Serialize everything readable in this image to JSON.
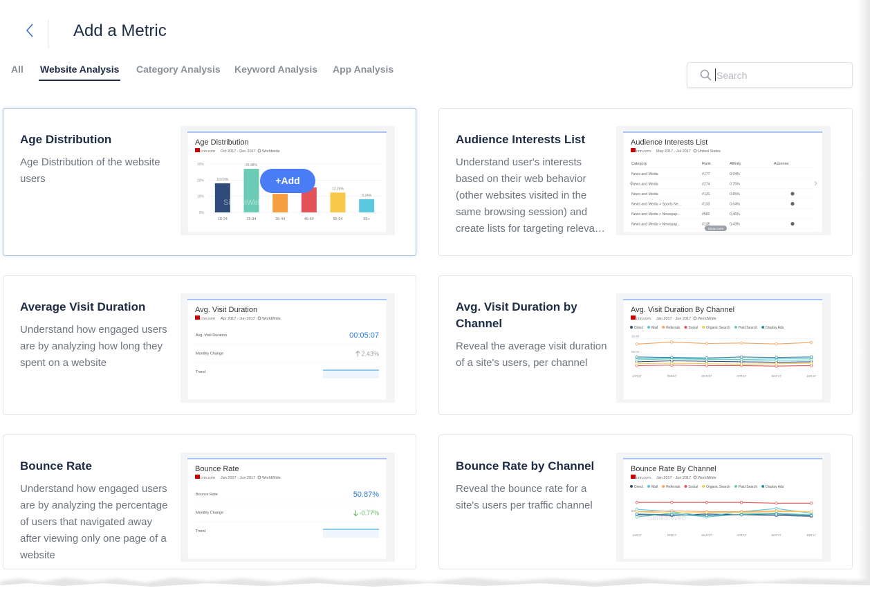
{
  "header": {
    "title": "Add a Metric"
  },
  "tabs": [
    "All",
    "Website Analysis",
    "Category Analysis",
    "Keyword Analysis",
    "App Analysis"
  ],
  "active_tab": 1,
  "search": {
    "placeholder": "Search"
  },
  "selected_card": 0,
  "cards": [
    {
      "title": "Age Distribution",
      "description": "Age Distribution of the website users",
      "preview": {
        "type": "bar",
        "title": "Age Distribution",
        "site": "cnn.com",
        "date": "Oct 2017 - Dec 2017",
        "region": "Worldwide",
        "categories": [
          "18-24",
          "25-34",
          "35-44",
          "45-54",
          "55-64",
          "65+"
        ],
        "values": [
          18.03,
          26.98,
          11.5,
          15.5,
          12.26,
          8.24
        ],
        "value_labels": [
          "18.03%",
          "26.98%",
          null,
          null,
          "12.26%",
          "8.24%"
        ],
        "colors": [
          "#2f4b7c",
          "#6ccbb5",
          "#f59e42",
          "#e3545a",
          "#f7c948",
          "#5bc8e0"
        ],
        "ylim": [
          0,
          30
        ],
        "yticks": [
          {
            "value": 0,
            "label": "0%"
          },
          {
            "value": 10,
            "label": "10%"
          },
          {
            "value": 20,
            "label": "20%"
          },
          {
            "value": 30,
            "label": "30%"
          }
        ],
        "watermark": "SimilarWeb",
        "button": "+Add"
      }
    },
    {
      "title": "Audience Interests List",
      "description": "Understand user's interests based on their web behavior (other websites visited in the same browsing session) and create lists for targeting releva…",
      "preview": {
        "type": "table",
        "title": "Audience Interests List",
        "site": "cnn.com",
        "date": "May 2017 - Jul 2017",
        "region": "United States",
        "columns": [
          "Category",
          "Rank",
          "Affinity",
          "Adsense"
        ],
        "rows": [
          {
            "cells": [
              "News and Media",
              "#177",
              "0.94%"
            ],
            "adsense": false
          },
          {
            "cells": [
              "News and Media",
              "#274",
              "0.75%"
            ],
            "adsense": false
          },
          {
            "cells": [
              "News and Media",
              "#131",
              "0.65%"
            ],
            "adsense": true
          },
          {
            "cells": [
              "News and Media > Sports Ne...",
              "#133",
              "0.64%"
            ],
            "adsense": true
          },
          {
            "cells": [
              "News and Media > Newspap...",
              "#582",
              "0.46%"
            ],
            "adsense": false
          },
          {
            "cells": [
              "News and Media > Newspap...",
              "#135",
              "0.43%"
            ],
            "adsense": true
          }
        ],
        "more": "Show more"
      }
    },
    {
      "title": "Average Visit Duration",
      "description": "Understand how engaged users are by analyzing how long they spent on a website",
      "preview": {
        "type": "metric",
        "title": "Avg. Visit Duration",
        "site": "cnn.com",
        "date": "Apr 2017 - Jun 2017",
        "region": "WorldWide",
        "rows": [
          {
            "label": "Avg. Visit Duration",
            "value": "00:05:07",
            "color": "#2a7de1"
          },
          {
            "label": "Monthly Change",
            "value": "2.43%",
            "color": "#9aa0a8",
            "arrow": "up"
          },
          {
            "label": "Trend"
          }
        ]
      }
    },
    {
      "title": "Avg. Visit Duration by Channel",
      "description": "Reveal the average visit duration of a site's users, per channel",
      "preview": {
        "type": "line",
        "title": "Avg. Visit Duration By Channel",
        "site": "cnn.com",
        "date": "Jan 2017 - Jun 2017",
        "region": "WorldWide",
        "categories": [
          "JAN'17",
          "FEB'17",
          "MAR'17",
          "APR'17",
          "MAY'17",
          "JUN'17"
        ],
        "ylim": [
          320,
          680
        ],
        "yticks": [
          {
            "value": 480,
            "label": "08:00"
          },
          {
            "value": 640,
            "label": "10:40"
          }
        ],
        "series": [
          {
            "name": "Direct",
            "color": "#2f4b7c",
            "values": [
              400,
              410,
              405,
              400,
              395,
              400
            ]
          },
          {
            "name": "Mail",
            "color": "#5bc8e0",
            "values": [
              430,
              440,
              430,
              425,
              430,
              435
            ]
          },
          {
            "name": "Referrals",
            "color": "#f4a261",
            "values": [
              584,
              605,
              590,
              595,
              585,
              600
            ]
          },
          {
            "name": "Social",
            "color": "#e3545a",
            "values": [
              360,
              365,
              360,
              360,
              355,
              360
            ]
          },
          {
            "name": "Organic Search",
            "color": "#f7c948",
            "values": [
              380,
              385,
              380,
              375,
              380,
              385
            ]
          },
          {
            "name": "Paid Search",
            "color": "#6ccbb5",
            "values": [
              420,
              430,
              425,
              420,
              415,
              420
            ]
          },
          {
            "name": "Display Ads",
            "color": "#2e86ab",
            "values": [
              450,
              445,
              440,
              450,
              445,
              450
            ]
          }
        ]
      }
    },
    {
      "title": "Bounce Rate",
      "description": "Understand how engaged users are by analyzing the percentage of users that navigated away after viewing only one page of a website",
      "preview": {
        "type": "metric",
        "title": "Bounce Rate",
        "site": "cnn.com",
        "date": "Jan 2017 - Jun 2017",
        "region": "WorldWide",
        "rows": [
          {
            "label": "Bounce Rate",
            "value": "50.87%",
            "color": "#2a7de1"
          },
          {
            "label": "Monthly Change",
            "value": "-0.77%",
            "color": "#5cb85c",
            "arrow": "down"
          },
          {
            "label": "Trend"
          }
        ]
      }
    },
    {
      "title": "Bounce Rate by Channel",
      "description": "Reveal the bounce rate for a site's users per traffic channel",
      "preview": {
        "type": "line",
        "title": "Bounce Rate By Channel",
        "site": "cnn.com",
        "date": "Jan 2017 - Jun 2017",
        "region": "WorldWide",
        "categories": [
          "JAN'17",
          "FEB'17",
          "MAR'17",
          "APR'17",
          "MAY'17",
          "JUN'17"
        ],
        "ylim": [
          30,
          75
        ],
        "yticks": [
          {
            "value": 50,
            "label": "50%"
          }
        ],
        "watermark": "SimilarWeb",
        "series": [
          {
            "name": "Direct",
            "color": "#2f4b7c",
            "values": [
              48,
              47,
              49,
              48,
              47,
              46
            ]
          },
          {
            "name": "Mail",
            "color": "#5bc8e0",
            "values": [
              55,
              52,
              46,
              52,
              56,
              50
            ]
          },
          {
            "name": "Referrals",
            "color": "#f4a261",
            "values": [
              52,
              53,
              52,
              52,
              53,
              52
            ]
          },
          {
            "name": "Social",
            "color": "#e3545a",
            "values": [
              64,
              64,
              64,
              64,
              63,
              63
            ]
          },
          {
            "name": "Organic Search",
            "color": "#f7c948",
            "values": [
              52,
              50,
              51,
              51,
              52,
              52
            ]
          },
          {
            "name": "Paid Search",
            "color": "#6ccbb5",
            "values": [
              45,
              50,
              45,
              49,
              50,
              48
            ]
          },
          {
            "name": "Display Ads",
            "color": "#2e86ab",
            "values": [
              49,
              48,
              47,
              48,
              49,
              47
            ]
          }
        ]
      }
    }
  ]
}
